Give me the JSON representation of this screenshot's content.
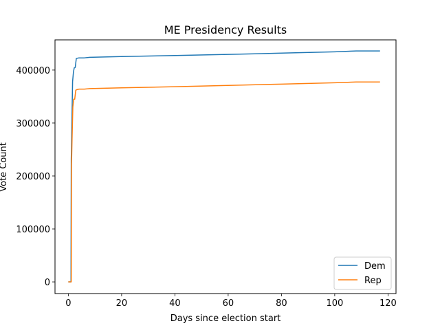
{
  "chart_data": {
    "type": "line",
    "title": "ME Presidency Results",
    "xlabel": "Days since election start",
    "ylabel": "Vote Count",
    "xlim": [
      -5,
      123
    ],
    "ylim": [
      -22000,
      457000
    ],
    "xticks": [
      0,
      20,
      40,
      60,
      80,
      100,
      120
    ],
    "yticks": [
      0,
      100000,
      200000,
      300000,
      400000
    ],
    "grid": false,
    "legend_position": "lower right",
    "series": [
      {
        "name": "Dem",
        "color": "#1f77b4",
        "x": [
          0,
          1.0,
          1.1,
          1.3,
          1.6,
          1.9,
          2.2,
          2.6,
          3.0,
          4.0,
          6.0,
          8.0,
          20,
          40,
          60,
          80,
          100,
          108,
          117
        ],
        "y": [
          0,
          0,
          232000,
          290000,
          378000,
          395000,
          404000,
          405000,
          422000,
          423000,
          423000,
          424000,
          425500,
          427500,
          429500,
          432000,
          434500,
          436000,
          436000
        ]
      },
      {
        "name": "Rep",
        "color": "#ff7f0e",
        "x": [
          0,
          1.1,
          1.2,
          1.4,
          1.7,
          2.0,
          2.4,
          2.8,
          3.2,
          4.0,
          6.0,
          8.0,
          20,
          40,
          60,
          80,
          100,
          108,
          117
        ],
        "y": [
          0,
          0,
          222000,
          268000,
          330000,
          345000,
          345000,
          362000,
          363000,
          364000,
          364000,
          365000,
          366500,
          368500,
          371000,
          373500,
          376000,
          377500,
          377500
        ]
      }
    ]
  }
}
